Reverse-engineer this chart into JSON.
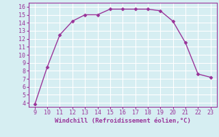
{
  "x": [
    9,
    10,
    11,
    12,
    13,
    14,
    15,
    16,
    17,
    18,
    19,
    20,
    21,
    22,
    23
  ],
  "y": [
    3.8,
    8.5,
    12.5,
    14.2,
    15.0,
    15.0,
    15.7,
    15.7,
    15.7,
    15.7,
    15.5,
    14.2,
    11.5,
    7.6,
    7.2
  ],
  "line_color": "#993399",
  "marker": "D",
  "marker_size": 2.5,
  "background_color": "#d6eef2",
  "grid_color": "#ffffff",
  "xlabel": "Windchill (Refroidissement éolien,°C)",
  "xlabel_color": "#993399",
  "tick_color": "#993399",
  "spine_color": "#993399",
  "xlim": [
    8.5,
    23.5
  ],
  "ylim": [
    3.5,
    16.5
  ],
  "xticks": [
    9,
    10,
    11,
    12,
    13,
    14,
    15,
    16,
    17,
    18,
    19,
    20,
    21,
    22,
    23
  ],
  "yticks": [
    4,
    5,
    6,
    7,
    8,
    9,
    10,
    11,
    12,
    13,
    14,
    15,
    16
  ],
  "tick_labelsize": 6,
  "xlabel_fontsize": 6.5,
  "linewidth": 1.0
}
